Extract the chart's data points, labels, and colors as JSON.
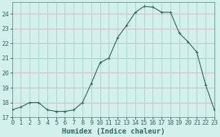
{
  "x": [
    0,
    1,
    2,
    3,
    4,
    5,
    6,
    7,
    8,
    9,
    10,
    11,
    12,
    13,
    14,
    15,
    16,
    17,
    18,
    19,
    20,
    21,
    22,
    23
  ],
  "y": [
    17.5,
    17.7,
    18.0,
    18.0,
    17.5,
    17.4,
    17.4,
    17.5,
    18.0,
    19.3,
    20.7,
    21.0,
    22.4,
    23.2,
    24.1,
    24.5,
    24.45,
    24.1,
    24.1,
    22.7,
    22.1,
    21.4,
    19.2,
    17.5
  ],
  "line_color": "#2d6b5e",
  "marker": "+",
  "marker_size": 3,
  "marker_lw": 0.8,
  "bg_color": "#d4f0ec",
  "hgrid_color": "#c8a8a8",
  "vgrid_color": "#9ed4cc",
  "xlabel": "Humidex (Indice chaleur)",
  "xlabel_fontsize": 7.5,
  "tick_fontsize": 6.5,
  "ylim": [
    17,
    24.8
  ],
  "yticks": [
    17,
    18,
    19,
    20,
    21,
    22,
    23,
    24
  ],
  "xlim": [
    0,
    23
  ],
  "xticks": [
    0,
    1,
    2,
    3,
    4,
    5,
    6,
    7,
    8,
    9,
    10,
    11,
    12,
    13,
    14,
    15,
    16,
    17,
    18,
    19,
    20,
    21,
    22,
    23
  ],
  "line_width": 0.9
}
